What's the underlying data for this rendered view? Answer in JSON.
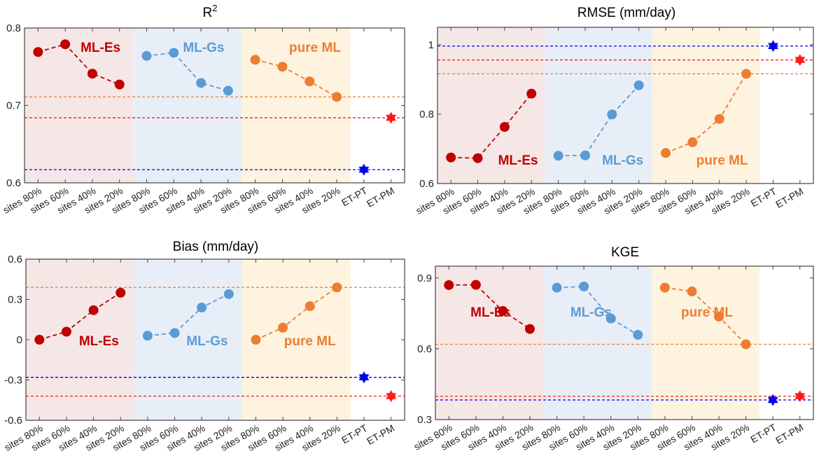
{
  "colors": {
    "ml_es": "#c00000",
    "ml_gs": "#5b9bd5",
    "pure_ml": "#ed7d31",
    "et_pt": "#0000ee",
    "et_pm": "#ff1a1a",
    "bg_ml_es": "#f5e7e6",
    "bg_ml_gs": "#e8eef7",
    "bg_pure_ml": "#fdf3df"
  },
  "chart_data": [
    {
      "type": "line",
      "title": "R2",
      "title_base": "R",
      "title_sup": "2",
      "categories": [
        "sites 80%",
        "sites 60%",
        "sites 40%",
        "sites 20%",
        "sites 80%",
        "sites 60%",
        "sites 40%",
        "sites 20%",
        "sites 80%",
        "sites 60%",
        "sites 40%",
        "sites 20%",
        "ET-PT",
        "ET-PM"
      ],
      "ylim": [
        0.6,
        0.8
      ],
      "yticks": [
        "0.6",
        "0.7",
        "0.8"
      ],
      "ytick_values": [
        0.6,
        0.7,
        0.8
      ],
      "series": [
        {
          "name": "ML-Es",
          "values": [
            0.769,
            0.779,
            0.741,
            0.727
          ]
        },
        {
          "name": "ML-Gs",
          "values": [
            0.764,
            0.768,
            0.729,
            0.719
          ]
        },
        {
          "name": "pure ML",
          "values": [
            0.759,
            0.75,
            0.731,
            0.711
          ]
        },
        {
          "name": "ET-PT",
          "values": [
            0.617
          ]
        },
        {
          "name": "ET-PM",
          "values": [
            0.684
          ]
        }
      ],
      "label_pos": "top"
    },
    {
      "type": "line",
      "title": "RMSE (mm/day)",
      "categories": [
        "sites 80%",
        "sites 60%",
        "sites 40%",
        "sites 20%",
        "sites 80%",
        "sites 60%",
        "sites 40%",
        "sites 20%",
        "sites 80%",
        "sites 60%",
        "sites 40%",
        "sites 20%",
        "ET-PT",
        "ET-PM"
      ],
      "ylim": [
        0.6,
        1.05
      ],
      "yticks": [
        "0.6",
        "0.8",
        "1"
      ],
      "ytick_values": [
        0.6,
        0.8,
        1.0
      ],
      "series": [
        {
          "name": "ML-Es",
          "values": [
            0.675,
            0.673,
            0.763,
            0.859
          ]
        },
        {
          "name": "ML-Gs",
          "values": [
            0.68,
            0.681,
            0.799,
            0.883
          ]
        },
        {
          "name": "pure ML",
          "values": [
            0.688,
            0.719,
            0.786,
            0.916
          ]
        },
        {
          "name": "ET-PT",
          "values": [
            0.996
          ]
        },
        {
          "name": "ET-PM",
          "values": [
            0.956
          ]
        }
      ],
      "label_pos": "bottom"
    },
    {
      "type": "line",
      "title": "Bias (mm/day)",
      "categories": [
        "sites 80%",
        "sites 60%",
        "sites 40%",
        "sites 20%",
        "sites 80%",
        "sites 60%",
        "sites 40%",
        "sites 20%",
        "sites 80%",
        "sites 60%",
        "sites 40%",
        "sites 20%",
        "ET-PT",
        "ET-PM"
      ],
      "ylim": [
        -0.6,
        0.6
      ],
      "yticks": [
        "-0.6",
        "-0.3",
        "0",
        "0.3",
        "0.6"
      ],
      "ytick_values": [
        -0.6,
        -0.3,
        0,
        0.3,
        0.6
      ],
      "series": [
        {
          "name": "ML-Es",
          "values": [
            0.0,
            0.06,
            0.22,
            0.35
          ]
        },
        {
          "name": "ML-Gs",
          "values": [
            0.03,
            0.05,
            0.24,
            0.34
          ]
        },
        {
          "name": "pure ML",
          "values": [
            0.0,
            0.09,
            0.25,
            0.39
          ]
        },
        {
          "name": "ET-PT",
          "values": [
            -0.28
          ]
        },
        {
          "name": "ET-PM",
          "values": [
            -0.42
          ]
        }
      ],
      "label_pos": "middle"
    },
    {
      "type": "line",
      "title": "KGE",
      "categories": [
        "sites 80%",
        "sites 60%",
        "sites 40%",
        "sites 20%",
        "sites 80%",
        "sites 60%",
        "sites 40%",
        "sites 20%",
        "sites 80%",
        "sites 60%",
        "sites 40%",
        "sites 20%",
        "ET-PT",
        "ET-PM"
      ],
      "ylim": [
        0.3,
        0.95
      ],
      "yticks": [
        "0.3",
        "0.6",
        "0.9"
      ],
      "ytick_values": [
        0.3,
        0.6,
        0.9
      ],
      "series": [
        {
          "name": "ML-Es",
          "values": [
            0.87,
            0.871,
            0.76,
            0.684
          ]
        },
        {
          "name": "ML-Gs",
          "values": [
            0.859,
            0.864,
            0.728,
            0.659
          ]
        },
        {
          "name": "pure ML",
          "values": [
            0.859,
            0.843,
            0.736,
            0.619
          ]
        },
        {
          "name": "ET-PT",
          "values": [
            0.383
          ]
        },
        {
          "name": "ET-PM",
          "values": [
            0.399
          ]
        }
      ],
      "label_pos": "upper-middle"
    }
  ],
  "group_labels": [
    "ML-Es",
    "ML-Gs",
    "pure ML"
  ]
}
